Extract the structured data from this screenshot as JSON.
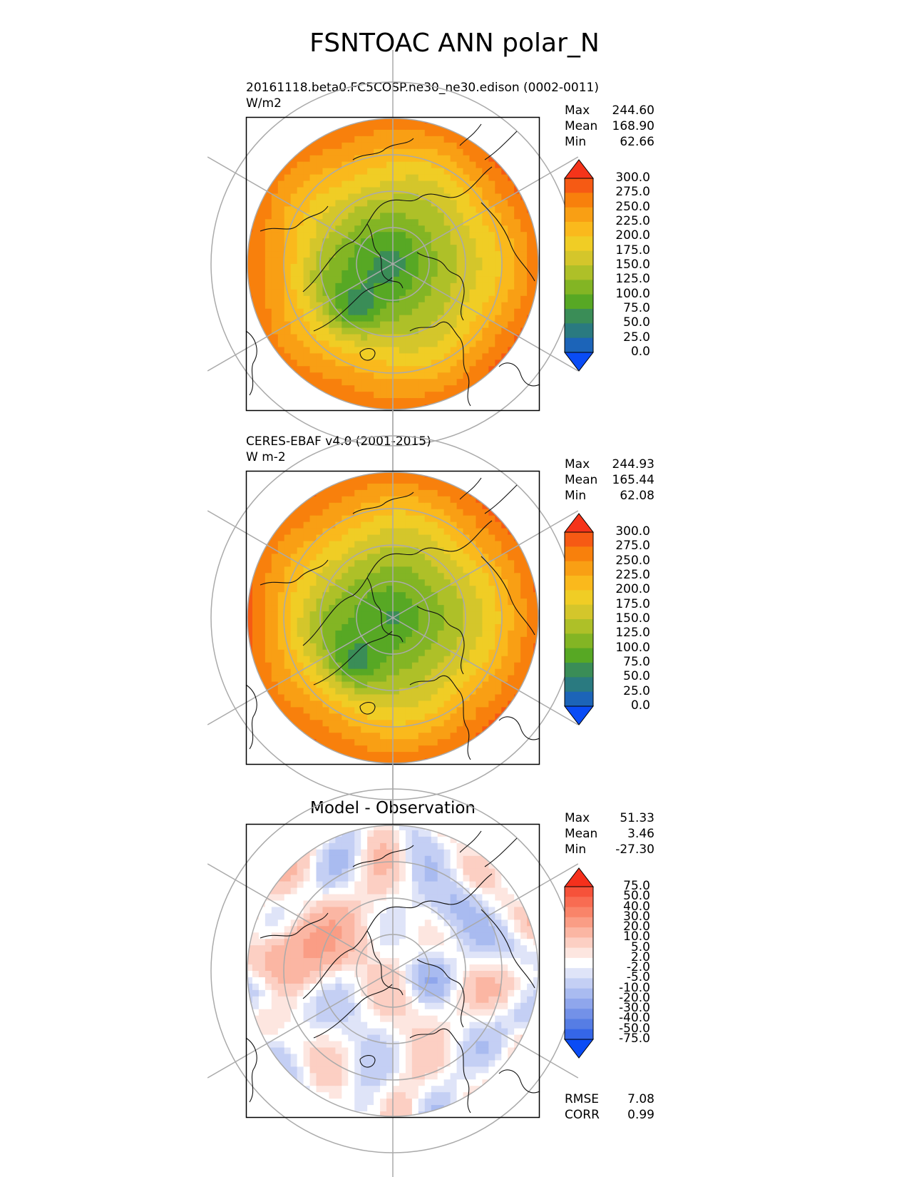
{
  "title": "FSNTOAC ANN polar_N",
  "panels": [
    {
      "id": "test",
      "heading": "",
      "subtitle_lines": [
        "20161118.beta0.FC5COSP.ne30_ne30.edison (0002-0011)",
        "W/m2"
      ],
      "stats": [
        {
          "label": "Max",
          "value": "244.60"
        },
        {
          "label": "Mean",
          "value": "168.90"
        },
        {
          "label": "Min",
          "value": "62.66"
        }
      ],
      "colorbar": {
        "levels": [
          "300.0",
          "275.0",
          "250.0",
          "225.0",
          "200.0",
          "175.0",
          "150.0",
          "125.0",
          "100.0",
          "75.0",
          "50.0",
          "25.0",
          "0.0"
        ],
        "colors": [
          "#f5341a",
          "#f65a14",
          "#f8800c",
          "#f99f14",
          "#fab91c",
          "#f0cd25",
          "#d4c62b",
          "#aec028",
          "#83b524",
          "#57a824",
          "#3a8d57",
          "#2a7a80",
          "#1c64b8",
          "#0a4cf5"
        ]
      }
    },
    {
      "id": "reference",
      "heading": "",
      "subtitle_lines": [
        "CERES-EBAF v4.0 (2001-2015)",
        "W m-2"
      ],
      "stats": [
        {
          "label": "Max",
          "value": "244.93"
        },
        {
          "label": "Mean",
          "value": "165.44"
        },
        {
          "label": "Min",
          "value": "62.08"
        }
      ],
      "colorbar": {
        "levels": [
          "300.0",
          "275.0",
          "250.0",
          "225.0",
          "200.0",
          "175.0",
          "150.0",
          "125.0",
          "100.0",
          "75.0",
          "50.0",
          "25.0",
          "0.0"
        ],
        "colors": [
          "#f5341a",
          "#f65a14",
          "#f8800c",
          "#f99f14",
          "#fab91c",
          "#f0cd25",
          "#d4c62b",
          "#aec028",
          "#83b524",
          "#57a824",
          "#3a8d57",
          "#2a7a80",
          "#1c64b8",
          "#0a4cf5"
        ]
      }
    },
    {
      "id": "difference",
      "heading": "Model - Observation",
      "subtitle_lines": [],
      "stats": [
        {
          "label": "Max",
          "value": "51.33"
        },
        {
          "label": "Mean",
          "value": "3.46"
        },
        {
          "label": "Min",
          "value": "-27.30"
        }
      ],
      "colorbar": {
        "levels": [
          "75.0",
          "50.0",
          "40.0",
          "30.0",
          "20.0",
          "10.0",
          "5.0",
          "2.0",
          "-2.0",
          "-5.0",
          "-10.0",
          "-20.0",
          "-30.0",
          "-40.0",
          "-50.0",
          "-75.0"
        ],
        "colors": [
          "#f5301c",
          "#f6523a",
          "#f86c52",
          "#f98469",
          "#fa9d85",
          "#fbb6a3",
          "#fccfc3",
          "#fde6e0",
          "#ffffff",
          "#dfe4f8",
          "#c4cff4",
          "#a9bbf0",
          "#8fa6ec",
          "#7391e8",
          "#567de4",
          "#3566e8",
          "#0a4cf5"
        ]
      },
      "footer_stats": [
        {
          "label": "RMSE",
          "value": "7.08"
        },
        {
          "label": "CORR",
          "value": "0.99"
        }
      ]
    }
  ]
}
